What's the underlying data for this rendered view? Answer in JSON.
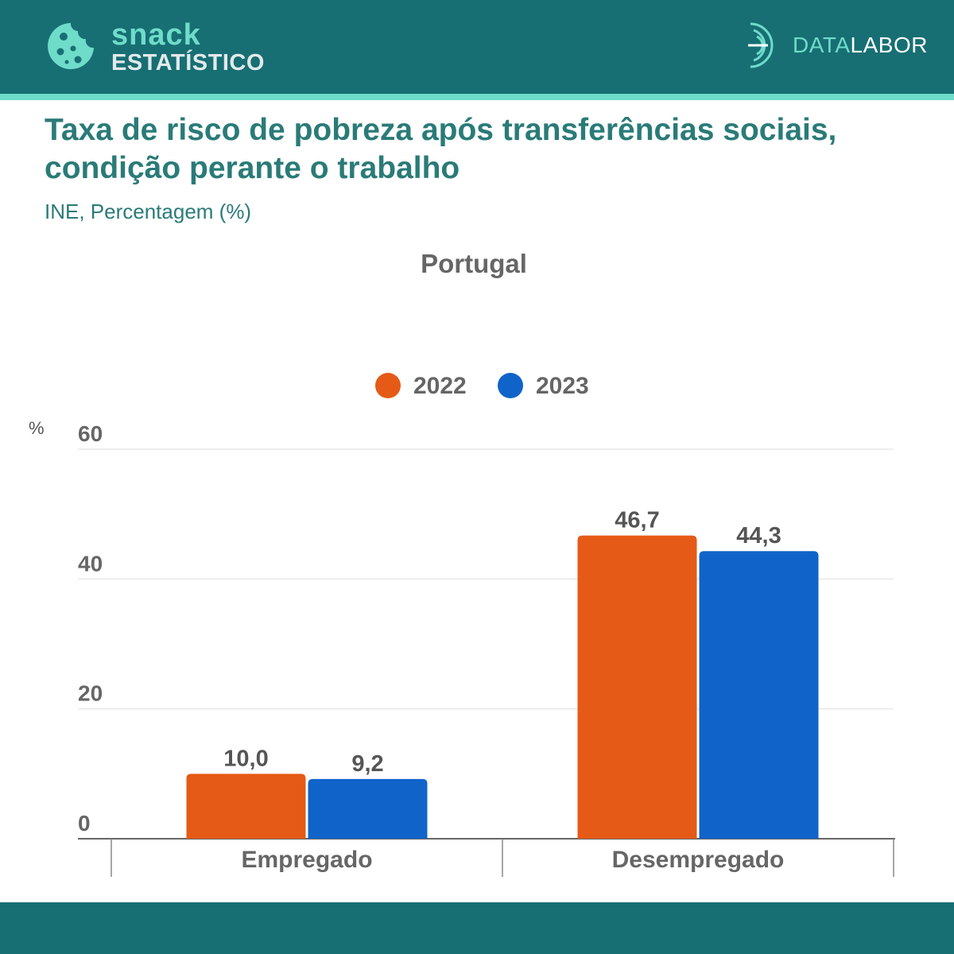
{
  "brand": {
    "snack": "snack",
    "estatistico": "ESTATÍSTICO",
    "datalabor_data": "DATA",
    "datalabor_labor": "LABOR",
    "cookie_icon": "cookie-icon",
    "datalabor_icon": "datalabor-arcs-icon"
  },
  "colors": {
    "header": "#176f73",
    "accent": "#6fdcc9",
    "title": "#2a7b78",
    "series_2022": "#e55a16",
    "series_2023": "#1063c9"
  },
  "heading": {
    "title": "Taxa de risco de pobreza após transferências sociais, condição perante o trabalho",
    "subtitle": "INE, Percentagem (%)"
  },
  "chart_data": {
    "type": "bar",
    "title": "Portugal",
    "ylabel": "%",
    "xlabel": "",
    "ylim": [
      0,
      60
    ],
    "yticks": [
      0,
      20,
      40,
      60
    ],
    "ytick_labels": [
      "0",
      "20",
      "40",
      "60"
    ],
    "categories": [
      "Empregado",
      "Desempregado"
    ],
    "series": [
      {
        "name": "2022",
        "color": "#e55a16",
        "values": [
          10.0,
          46.7
        ],
        "labels": [
          "10,0",
          "46,7"
        ]
      },
      {
        "name": "2023",
        "color": "#1063c9",
        "values": [
          9.2,
          44.3
        ],
        "labels": [
          "9,2",
          "44,3"
        ]
      }
    ],
    "legend": "top-center",
    "grid": true
  }
}
